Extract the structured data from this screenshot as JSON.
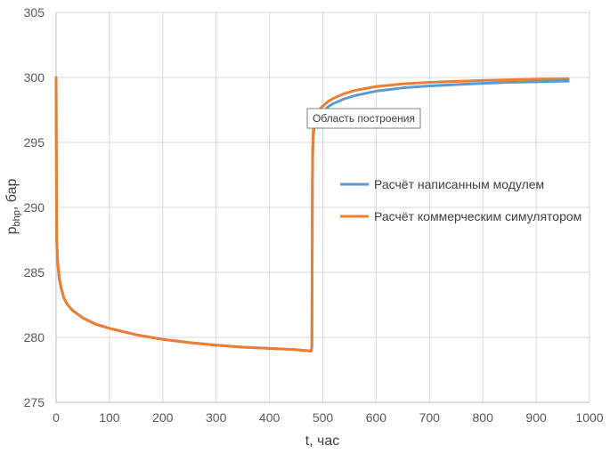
{
  "chart_data": {
    "type": "line",
    "title": "",
    "xlabel": "t, час",
    "ylabel": {
      "main": "p",
      "sub": "bhp",
      "suffix": ", бар"
    },
    "xlim": [
      0,
      1000
    ],
    "ylim": [
      275,
      305
    ],
    "x_ticks": [
      "0",
      "100",
      "200",
      "300",
      "400",
      "500",
      "600",
      "700",
      "800",
      "900",
      "1000"
    ],
    "y_ticks": [
      "275",
      "280",
      "285",
      "290",
      "295",
      "300",
      "305"
    ],
    "grid": true,
    "legend_position": "right",
    "tooltip": "Область построения",
    "series": [
      {
        "name": "Расчёт написанным модулем",
        "color": "#5b9bd5",
        "x": [
          0,
          1,
          3,
          6,
          10,
          15,
          20,
          30,
          40,
          50,
          75,
          100,
          150,
          200,
          250,
          300,
          350,
          400,
          450,
          478,
          479.5,
          480,
          480.5,
          481,
          482,
          484,
          487,
          490,
          495,
          500,
          510,
          520,
          540,
          560,
          600,
          650,
          700,
          750,
          800,
          850,
          900,
          960
        ],
        "y": [
          300,
          287.6,
          285.8,
          284.5,
          283.7,
          283.0,
          282.6,
          282.1,
          281.8,
          281.5,
          281.0,
          280.7,
          280.2,
          279.85,
          279.6,
          279.4,
          279.25,
          279.15,
          279.05,
          278.95,
          279.2,
          285.0,
          291.5,
          294.0,
          295.5,
          296.2,
          296.6,
          296.9,
          297.2,
          297.4,
          297.75,
          298.0,
          298.35,
          298.6,
          298.95,
          299.2,
          299.35,
          299.45,
          299.55,
          299.62,
          299.67,
          299.72
        ]
      },
      {
        "name": "Расчёт коммерческим симулятором",
        "color": "#ed7d31",
        "x": [
          0,
          1,
          3,
          6,
          10,
          15,
          20,
          30,
          40,
          50,
          75,
          100,
          150,
          200,
          250,
          300,
          350,
          400,
          450,
          478,
          479.5,
          480,
          480.5,
          481,
          482,
          484,
          487,
          490,
          495,
          500,
          510,
          520,
          540,
          560,
          600,
          650,
          700,
          750,
          800,
          850,
          900,
          960
        ],
        "y": [
          300,
          287.6,
          285.8,
          284.5,
          283.7,
          283.0,
          282.6,
          282.1,
          281.8,
          281.5,
          281.0,
          280.7,
          280.2,
          279.85,
          279.6,
          279.4,
          279.25,
          279.15,
          279.05,
          278.95,
          279.3,
          285.5,
          292.0,
          294.5,
          295.9,
          296.6,
          297.0,
          297.3,
          297.6,
          297.8,
          298.15,
          298.4,
          298.75,
          299.0,
          299.3,
          299.5,
          299.62,
          299.7,
          299.77,
          299.82,
          299.86,
          299.9
        ]
      }
    ]
  }
}
